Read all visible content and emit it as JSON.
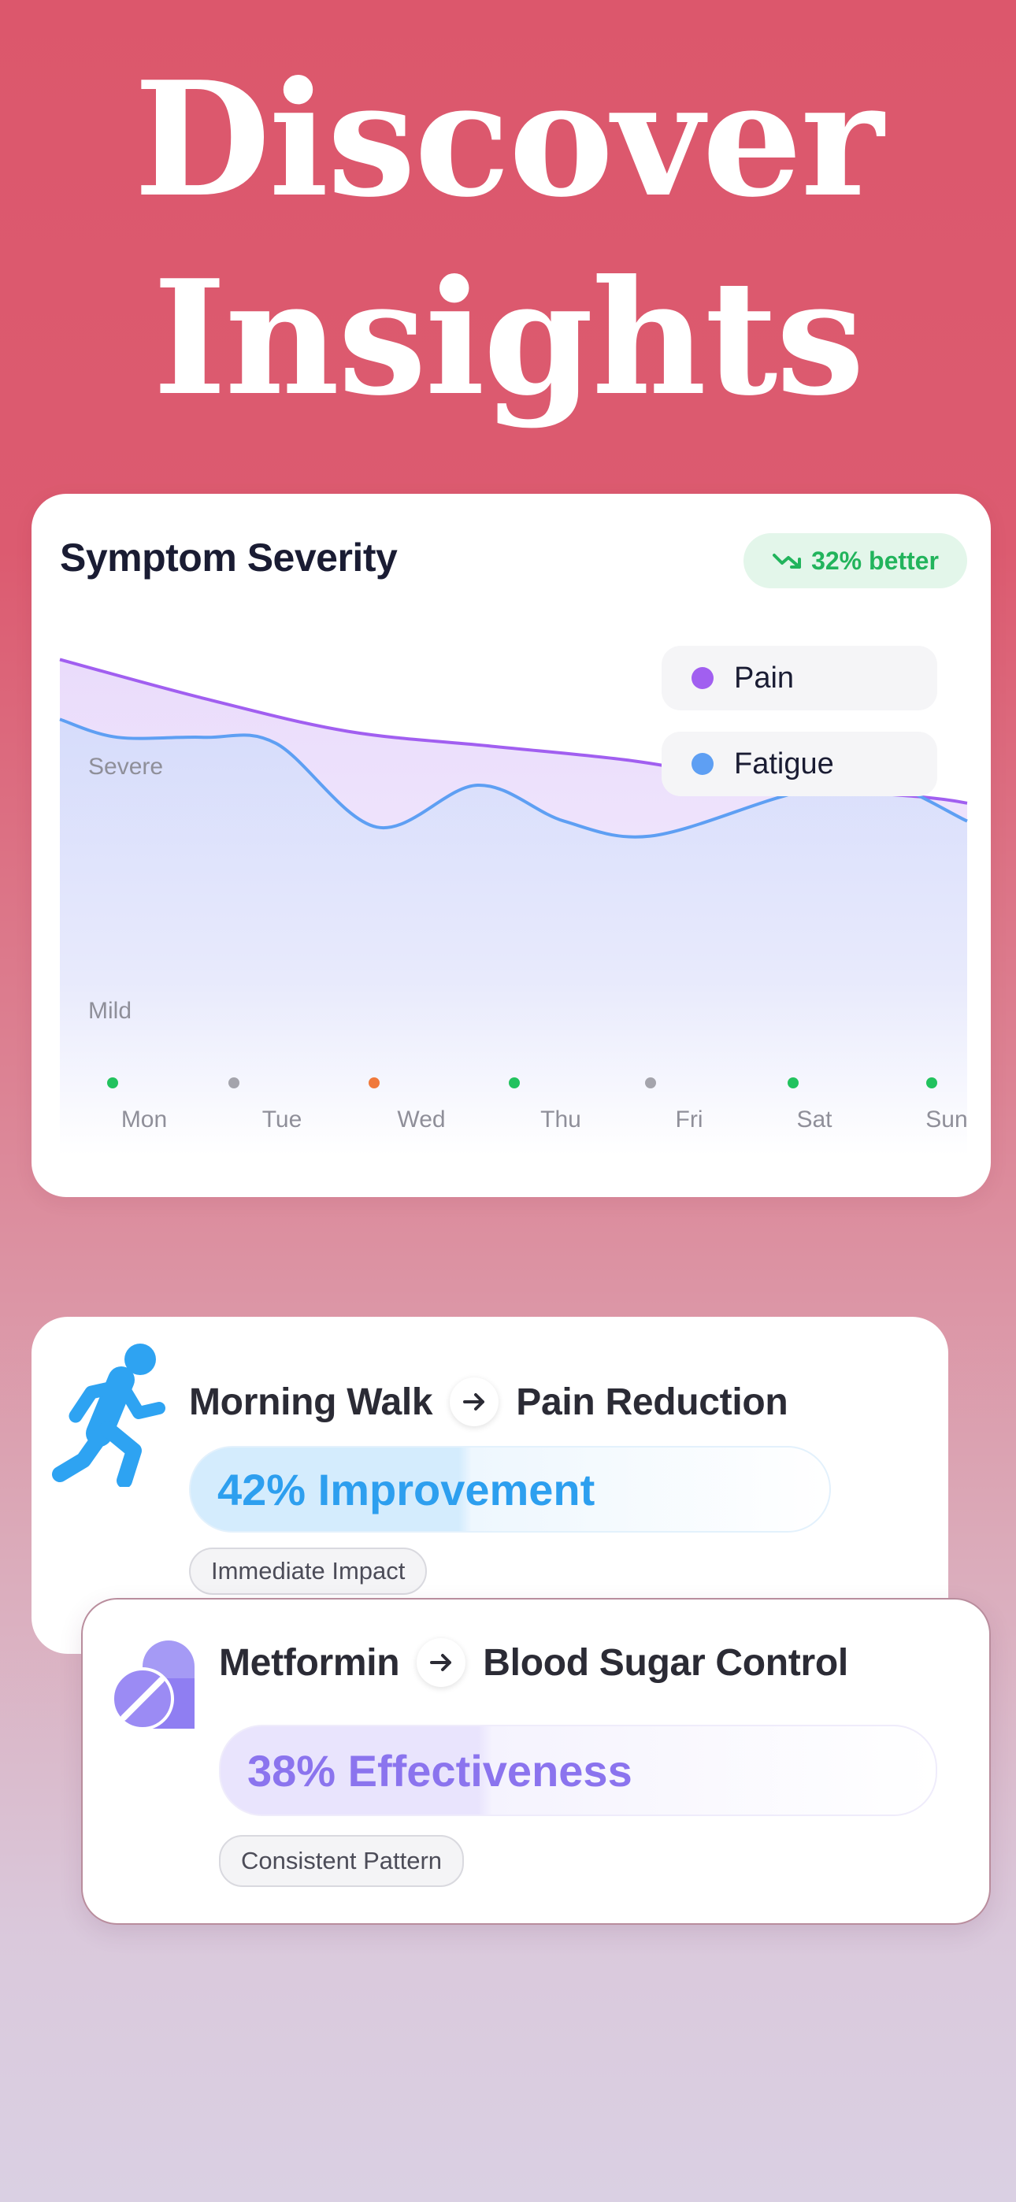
{
  "hero": {
    "line1": "Discover",
    "line2": "Insights"
  },
  "chart_card": {
    "title": "Symptom Severity",
    "badge": {
      "text": "32% better",
      "icon": "trending-down-icon",
      "color": "#22b45c"
    },
    "legend": [
      {
        "label": "Pain",
        "color": "#a15ff0"
      },
      {
        "label": "Fatigue",
        "color": "#5e9ff3"
      }
    ],
    "y_labels": {
      "high": "Severe",
      "low": "Mild"
    }
  },
  "chart_data": {
    "type": "area",
    "title": "Symptom Severity",
    "xlabel": "",
    "ylabel": "",
    "categories": [
      "Mon",
      "Tue",
      "Wed",
      "Thu",
      "Fri",
      "Sat",
      "Sun"
    ],
    "ylim": [
      0,
      100
    ],
    "y_tick_labels": [
      "Severe",
      "Mild"
    ],
    "grid": false,
    "legend_position": "top-right",
    "series": [
      {
        "name": "Pain",
        "color": "#a15ff0",
        "x": [
          0,
          1,
          2,
          3,
          4,
          5,
          6,
          6.3
        ],
        "values": [
          92,
          79,
          68,
          63,
          58,
          50,
          46,
          44
        ]
      },
      {
        "name": "Fatigue",
        "color": "#5e9ff3",
        "x": [
          0,
          0.4,
          1,
          1.5,
          2.2,
          2.9,
          3.5,
          4.1,
          5,
          5.6,
          6.3
        ],
        "values": [
          72,
          66,
          66,
          64,
          36,
          50,
          38,
          33,
          46,
          53,
          38
        ]
      }
    ],
    "day_status_colors": [
      "#22c25e",
      "#a4a4ac",
      "#f0793b",
      "#22c25e",
      "#a4a4ac",
      "#22c25e",
      "#22c25e"
    ]
  },
  "insights": [
    {
      "icon": "running-icon",
      "icon_color": "#2ea3f2",
      "cause": "Morning Walk",
      "effect": "Pain Reduction",
      "metric": "42% Improvement",
      "tag": "Immediate Impact"
    },
    {
      "icon": "pill-icon",
      "icon_color": "#8f7ef2",
      "cause": "Metformin",
      "effect": "Blood Sugar Control",
      "metric": "38% Effectiveness",
      "tag": "Consistent Pattern"
    }
  ]
}
